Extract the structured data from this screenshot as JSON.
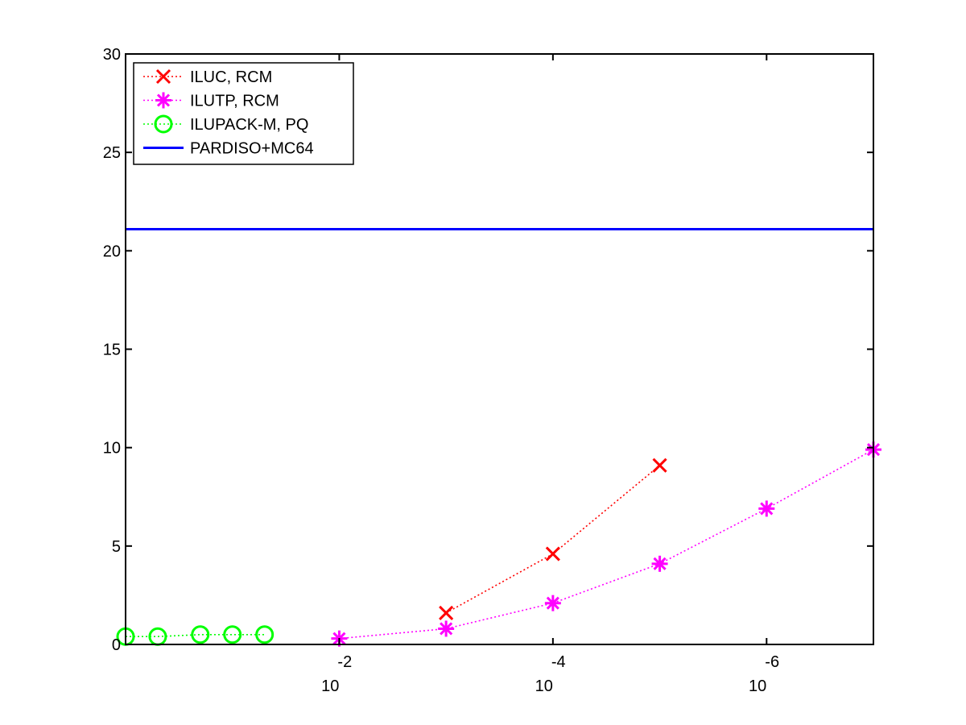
{
  "chart_data": {
    "type": "line",
    "x_scale": "log",
    "x_direction": "decreasing",
    "xlim": [
      1,
      1e-07
    ],
    "ylim": [
      0,
      30
    ],
    "y_ticks": [
      "0",
      "5",
      "10",
      "15",
      "20",
      "25",
      "30"
    ],
    "x_ticks": [
      {
        "base": "10",
        "exp": "-2"
      },
      {
        "base": "10",
        "exp": "-4"
      },
      {
        "base": "10",
        "exp": "-6"
      }
    ],
    "grid": false,
    "legend_position": "top-left",
    "series": [
      {
        "name": "ILUC, RCM",
        "color": "#ff0000",
        "marker": "x",
        "line": "dotted",
        "points": [
          {
            "x": 0.001,
            "y": 1.6
          },
          {
            "x": 0.0001,
            "y": 4.6
          },
          {
            "x": 1e-05,
            "y": 9.1
          }
        ]
      },
      {
        "name": "ILUTP, RCM",
        "color": "#ff00ff",
        "marker": "asterisk",
        "line": "dotted",
        "points": [
          {
            "x": 0.01,
            "y": 0.3
          },
          {
            "x": 0.001,
            "y": 0.8
          },
          {
            "x": 0.0001,
            "y": 2.1
          },
          {
            "x": 1e-05,
            "y": 4.1
          },
          {
            "x": 1e-06,
            "y": 6.9
          },
          {
            "x": 1e-07,
            "y": 9.9
          }
        ]
      },
      {
        "name": "ILUPACK-M, PQ",
        "color": "#00ff00",
        "marker": "circle",
        "line": "dotted",
        "points": [
          {
            "x": 1,
            "y": 0.4
          },
          {
            "x": 0.5,
            "y": 0.4
          },
          {
            "x": 0.2,
            "y": 0.5
          },
          {
            "x": 0.1,
            "y": 0.5
          },
          {
            "x": 0.05,
            "y": 0.5
          }
        ]
      },
      {
        "name": "PARDISO+MC64",
        "color": "#0000ff",
        "marker": "none",
        "line": "solid",
        "points": [
          {
            "x": 1,
            "y": 21.1
          },
          {
            "x": 1e-07,
            "y": 21.1
          }
        ]
      }
    ]
  }
}
